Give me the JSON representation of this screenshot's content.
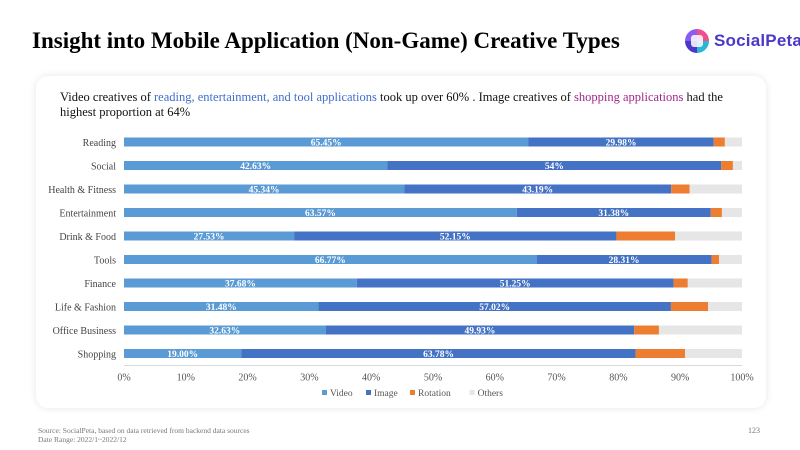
{
  "page": {
    "title": "Insight into Mobile Application (Non-Game) Creative Types",
    "logo_text": "SocialPeta",
    "page_number": "123",
    "source": "Source: SocialPeta, based on data retrieved from backend data sources",
    "date_range": "Date Range:  2022/1~2022/12"
  },
  "insight": {
    "p1": "Video creatives of ",
    "h1": "reading, entertainment, and tool applications",
    "p2": " took up over 60% . Image creatives of ",
    "h2": "shopping applications",
    "p3": " had the highest proportion at 64%"
  },
  "colors": {
    "video": "#5b9bd5",
    "image": "#4472c4",
    "rotation": "#ed7d31",
    "others": "#e7e6e6",
    "highlight_blue": "#3f6fcc",
    "highlight_purple": "#a0288c"
  },
  "chart_data": {
    "type": "bar",
    "orientation": "horizontal",
    "stacked": true,
    "categories": [
      "Reading",
      "Social",
      "Health & Fitness",
      "Entertainment",
      "Drink & Food",
      "Tools",
      "Finance",
      "Life & Fashion",
      "Office Business",
      "Shopping"
    ],
    "series": [
      {
        "name": "Video",
        "values": [
          65.45,
          42.63,
          45.34,
          63.57,
          27.53,
          66.77,
          37.68,
          31.48,
          32.63,
          19.0
        ],
        "labels": [
          "65.45%",
          "42.63%",
          "45.34%",
          "63.57%",
          "27.53%",
          "66.77%",
          "37.68%",
          "31.48%",
          "32.63%",
          "19.00%"
        ]
      },
      {
        "name": "Image",
        "values": [
          29.98,
          54.0,
          43.19,
          31.38,
          52.15,
          28.31,
          51.25,
          57.02,
          49.93,
          63.78
        ],
        "labels": [
          "29.98%",
          "54%",
          "43.19%",
          "31.38%",
          "52.15%",
          "28.31%",
          "51.25%",
          "57.02%",
          "49.93%",
          "63.78%"
        ]
      },
      {
        "name": "Rotation",
        "values": [
          1.8,
          1.9,
          3.0,
          1.8,
          9.5,
          1.2,
          2.3,
          6.0,
          4.0,
          8.0
        ],
        "labels": []
      },
      {
        "name": "Others",
        "values": [
          2.77,
          1.47,
          8.47,
          3.25,
          10.82,
          3.72,
          8.77,
          5.5,
          13.44,
          9.22
        ],
        "labels": []
      }
    ],
    "x_ticks": [
      "0%",
      "10%",
      "20%",
      "30%",
      "40%",
      "50%",
      "60%",
      "70%",
      "80%",
      "90%",
      "100%"
    ],
    "xlim": [
      0,
      100
    ],
    "legend_position": "bottom",
    "grid": false
  }
}
